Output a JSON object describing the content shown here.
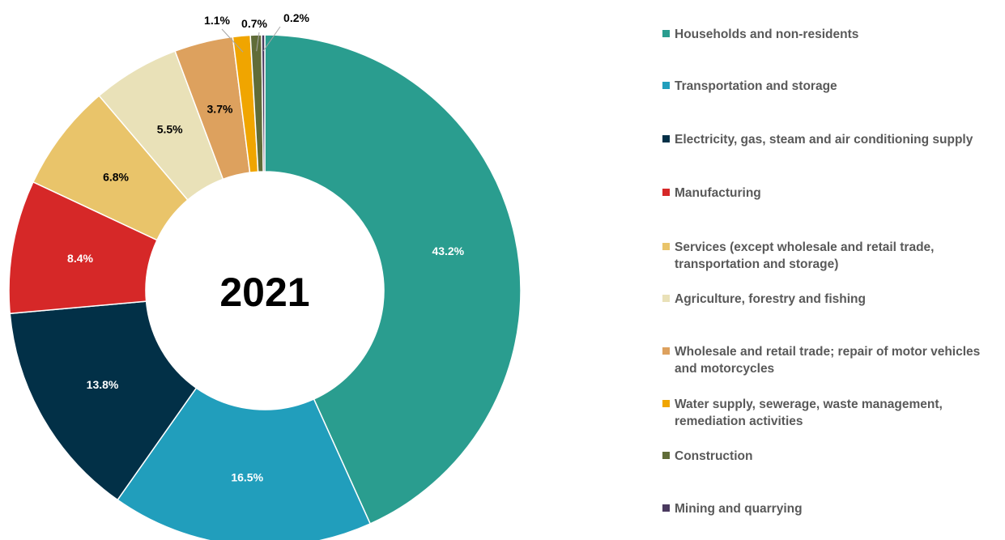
{
  "chart_data": {
    "type": "pie",
    "variant": "donut",
    "center_label": "2021",
    "legend_placement": "right",
    "categories": [
      "Households and non-residents",
      "Transportation and storage",
      "Electricity, gas, steam and air conditioning supply",
      "Manufacturing",
      "Services (except wholesale and retail trade, transportation and storage)",
      "Agriculture, forestry and fishing",
      "Wholesale and retail trade; repair of motor vehicles and motorcycles",
      "Water supply, sewerage, waste management, remediation activities",
      "Construction",
      "Mining and quarrying"
    ],
    "values": [
      43.2,
      16.5,
      13.8,
      8.4,
      6.8,
      5.5,
      3.7,
      1.1,
      0.7,
      0.2
    ],
    "data_labels": [
      "43.2%",
      "16.5%",
      "13.8%",
      "8.4%",
      "6.8%",
      "5.5%",
      "3.7%",
      "1.1%",
      "0.7%",
      "0.2%"
    ],
    "colors": [
      "#2a9d8f",
      "#219ebc",
      "#023047",
      "#d62828",
      "#e9c46a",
      "#e9e1b8",
      "#dda15e",
      "#f0a500",
      "#606c38",
      "#4a3a5f"
    ],
    "label_colors": [
      "#ffffff",
      "#ffffff",
      "#ffffff",
      "#ffffff",
      "#000000",
      "#000000",
      "#000000",
      "#000000",
      "#000000",
      "#000000"
    ]
  }
}
